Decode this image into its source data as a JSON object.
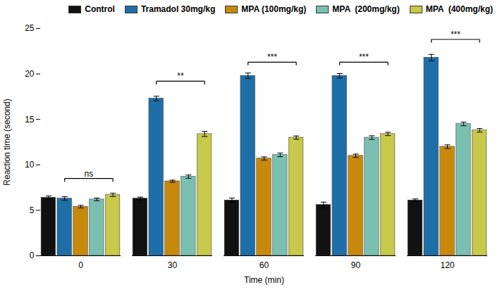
{
  "chart_data": {
    "type": "bar",
    "xlabel": "Time (min)",
    "ylabel": "Reaction time (second)",
    "categories": [
      "0",
      "30",
      "60",
      "90",
      "120"
    ],
    "series": [
      {
        "name": "Control",
        "color": "#111111",
        "values": [
          6.4,
          6.3,
          6.1,
          5.6,
          6.1
        ],
        "errors": [
          0.18,
          0.15,
          0.25,
          0.3,
          0.15
        ]
      },
      {
        "name": "Tramadol 30mg/kg",
        "color": "#1e6fa8",
        "values": [
          6.3,
          17.3,
          19.8,
          19.8,
          21.8
        ],
        "errors": [
          0.2,
          0.25,
          0.3,
          0.25,
          0.35
        ]
      },
      {
        "name": "MPA (100mg/kg)",
        "color": "#c8890a",
        "values": [
          5.4,
          8.2,
          10.7,
          11.0,
          12.0
        ],
        "errors": [
          0.15,
          0.12,
          0.18,
          0.18,
          0.2
        ]
      },
      {
        "name": "MPA  (200mg/kg)",
        "color": "#7abfb0",
        "values": [
          6.2,
          8.7,
          11.1,
          13.0,
          14.5
        ],
        "errors": [
          0.15,
          0.18,
          0.2,
          0.2,
          0.2
        ]
      },
      {
        "name": "MPA  (400mg/kg)",
        "color": "#c8c84a",
        "values": [
          6.7,
          13.4,
          13.0,
          13.4,
          13.8
        ],
        "errors": [
          0.18,
          0.28,
          0.18,
          0.18,
          0.2
        ]
      }
    ],
    "annotations": [
      {
        "category": "0",
        "from": "Tramadol 30mg/kg",
        "to": "MPA  (400mg/kg)",
        "y": 8.5,
        "text": "ns"
      },
      {
        "category": "30",
        "from": "Tramadol 30mg/kg",
        "to": "MPA  (400mg/kg)",
        "y": 19.2,
        "text": "**"
      },
      {
        "category": "60",
        "from": "Tramadol 30mg/kg",
        "to": "MPA  (400mg/kg)",
        "y": 21.3,
        "text": "***"
      },
      {
        "category": "90",
        "from": "Tramadol 30mg/kg",
        "to": "MPA  (400mg/kg)",
        "y": 21.3,
        "text": "***"
      },
      {
        "category": "120",
        "from": "Tramadol 30mg/kg",
        "to": "MPA  (400mg/kg)",
        "y": 23.8,
        "text": "***"
      }
    ],
    "ylim": [
      0,
      25
    ],
    "yticks": [
      0,
      5,
      10,
      15,
      20,
      25
    ],
    "grid": false,
    "legend": "upper right"
  }
}
